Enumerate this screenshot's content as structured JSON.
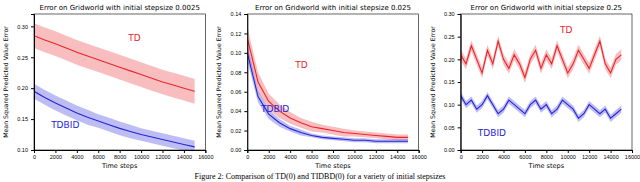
{
  "chart_data": [
    {
      "type": "line",
      "title": "Error on Gridworld with initial stepsize 0.0025",
      "x_label": "Time steps",
      "y_label": "Mean Squared Predicted Value Error",
      "x": [
        0,
        1000,
        2000,
        3000,
        4000,
        5000,
        6000,
        7000,
        8000,
        9000,
        10000,
        11000,
        12000,
        13000,
        14000,
        15000
      ],
      "xlim": [
        0,
        16000
      ],
      "xticks": [
        0,
        2000,
        4000,
        6000,
        8000,
        10000,
        12000,
        14000,
        16000
      ],
      "ylim": [
        0.1,
        0.32
      ],
      "yticks": [
        {
          "value": 0.1,
          "label": "0.10"
        },
        {
          "value": 0.15,
          "label": "0.15"
        },
        {
          "value": 0.2,
          "label": "0.20"
        },
        {
          "value": 0.25,
          "label": "0.25"
        },
        {
          "value": 0.3,
          "label": "0.30"
        }
      ],
      "grid": false,
      "series": [
        {
          "name": "TD",
          "color": "#e8262a",
          "values": [
            0.285,
            0.278,
            0.272,
            0.265,
            0.258,
            0.252,
            0.246,
            0.24,
            0.234,
            0.228,
            0.222,
            0.216,
            0.21,
            0.205,
            0.2,
            0.195
          ],
          "error": [
            0.02,
            0.02,
            0.02,
            0.02,
            0.02,
            0.02,
            0.02,
            0.02,
            0.02,
            0.02,
            0.02,
            0.02,
            0.02,
            0.02,
            0.02,
            0.02
          ]
        },
        {
          "name": "TDBID",
          "color": "#2424d8",
          "values": [
            0.195,
            0.185,
            0.176,
            0.168,
            0.16,
            0.153,
            0.147,
            0.141,
            0.135,
            0.13,
            0.125,
            0.121,
            0.117,
            0.113,
            0.109,
            0.105
          ],
          "error": [
            0.012,
            0.012,
            0.012,
            0.012,
            0.012,
            0.012,
            0.011,
            0.011,
            0.011,
            0.011,
            0.01,
            0.01,
            0.01,
            0.01,
            0.01,
            0.01
          ]
        }
      ]
    },
    {
      "type": "line",
      "title": "Error on Gridworld with initial stepsize 0.025",
      "x_label": "Time steps",
      "y_label": "Mean Squared Predicted Value Error",
      "x": [
        0,
        1000,
        2000,
        3000,
        4000,
        5000,
        6000,
        7000,
        8000,
        9000,
        10000,
        11000,
        12000,
        13000,
        14000,
        15000
      ],
      "xlim": [
        0,
        16000
      ],
      "xticks": [
        0,
        2000,
        4000,
        6000,
        8000,
        10000,
        12000,
        14000,
        16000
      ],
      "ylim": [
        0,
        0.14
      ],
      "yticks": [
        {
          "value": 0,
          "label": "0.00"
        },
        {
          "value": 0.02,
          "label": "0.02"
        },
        {
          "value": 0.04,
          "label": "0.04"
        },
        {
          "value": 0.06,
          "label": "0.06"
        },
        {
          "value": 0.08,
          "label": "0.08"
        },
        {
          "value": 0.1,
          "label": "0.10"
        },
        {
          "value": 0.12,
          "label": "0.12"
        },
        {
          "value": 0.14,
          "label": "0.14"
        }
      ],
      "grid": false,
      "series": [
        {
          "name": "TD",
          "color": "#e8262a",
          "values": [
            0.115,
            0.07,
            0.05,
            0.04,
            0.033,
            0.028,
            0.024,
            0.022,
            0.02,
            0.018,
            0.017,
            0.016,
            0.015,
            0.014,
            0.013,
            0.013
          ],
          "error": [
            0.012,
            0.01,
            0.008,
            0.007,
            0.006,
            0.005,
            0.005,
            0.004,
            0.004,
            0.004,
            0.003,
            0.003,
            0.003,
            0.003,
            0.003,
            0.003
          ]
        },
        {
          "name": "TDBID",
          "color": "#2424d8",
          "values": [
            0.1,
            0.055,
            0.037,
            0.028,
            0.022,
            0.018,
            0.015,
            0.013,
            0.012,
            0.011,
            0.01,
            0.01,
            0.009,
            0.009,
            0.009,
            0.009
          ],
          "error": [
            0.008,
            0.006,
            0.005,
            0.004,
            0.003,
            0.003,
            0.002,
            0.002,
            0.002,
            0.002,
            0.002,
            0.002,
            0.002,
            0.002,
            0.002,
            0.002
          ]
        }
      ]
    },
    {
      "type": "line",
      "title": "Error on Gridworld with initial stepsize 0.25",
      "x_label": "Time steps",
      "y_label": "Mean Squared Predicted Value Error",
      "x": [
        0,
        500,
        1000,
        1500,
        2000,
        2500,
        3000,
        3500,
        4000,
        4500,
        5000,
        5500,
        6000,
        6500,
        7000,
        7500,
        8000,
        8500,
        9000,
        9500,
        10000,
        10500,
        11000,
        11500,
        12000,
        12500,
        13000,
        13500,
        14000,
        14500,
        15000
      ],
      "xlim": [
        0,
        16000
      ],
      "xticks": [
        0,
        2000,
        4000,
        6000,
        8000,
        10000,
        12000,
        14000,
        16000
      ],
      "ylim": [
        0,
        0.3
      ],
      "yticks": [
        {
          "value": 0,
          "label": "0.00"
        },
        {
          "value": 0.05,
          "label": "0.05"
        },
        {
          "value": 0.1,
          "label": "0.10"
        },
        {
          "value": 0.15,
          "label": "0.15"
        },
        {
          "value": 0.2,
          "label": "0.20"
        },
        {
          "value": 0.25,
          "label": "0.25"
        },
        {
          "value": 0.3,
          "label": "0.30"
        }
      ],
      "grid": false,
      "series": [
        {
          "name": "TD",
          "color": "#e8262a",
          "values": [
            0.21,
            0.19,
            0.23,
            0.2,
            0.17,
            0.22,
            0.19,
            0.24,
            0.2,
            0.18,
            0.21,
            0.19,
            0.16,
            0.2,
            0.22,
            0.18,
            0.21,
            0.19,
            0.23,
            0.2,
            0.17,
            0.19,
            0.22,
            0.2,
            0.18,
            0.21,
            0.24,
            0.19,
            0.17,
            0.2,
            0.21
          ],
          "error": [
            0.012,
            0.012,
            0.012,
            0.012,
            0.012,
            0.012,
            0.012,
            0.012,
            0.012,
            0.012,
            0.012,
            0.012,
            0.012,
            0.012,
            0.012,
            0.012,
            0.012,
            0.012,
            0.012,
            0.012,
            0.012,
            0.012,
            0.012,
            0.012,
            0.012,
            0.012,
            0.012,
            0.012,
            0.012,
            0.012,
            0.012
          ]
        },
        {
          "name": "TDBID",
          "color": "#2424d8",
          "values": [
            0.12,
            0.1,
            0.11,
            0.09,
            0.1,
            0.12,
            0.1,
            0.08,
            0.09,
            0.11,
            0.1,
            0.09,
            0.08,
            0.1,
            0.11,
            0.09,
            0.1,
            0.08,
            0.09,
            0.11,
            0.1,
            0.09,
            0.07,
            0.08,
            0.1,
            0.09,
            0.08,
            0.09,
            0.07,
            0.08,
            0.09
          ],
          "error": [
            0.008,
            0.008,
            0.008,
            0.008,
            0.008,
            0.008,
            0.008,
            0.008,
            0.008,
            0.008,
            0.008,
            0.008,
            0.008,
            0.008,
            0.008,
            0.008,
            0.008,
            0.008,
            0.008,
            0.008,
            0.008,
            0.008,
            0.008,
            0.008,
            0.008,
            0.008,
            0.008,
            0.008,
            0.008,
            0.008,
            0.008
          ]
        }
      ]
    }
  ],
  "caption": "Figure 2: Comparison of TD(0) and TIDBD(0) for a variety of initial stepsizes"
}
